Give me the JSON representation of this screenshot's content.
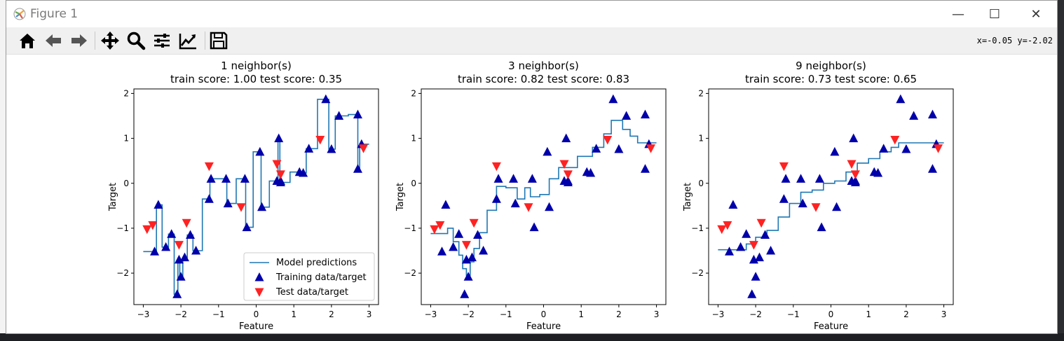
{
  "window": {
    "title": "Figure 1",
    "minimize": "—",
    "maximize": "☐",
    "close": "✕"
  },
  "toolbar": {
    "tools": [
      "home-icon",
      "back-icon",
      "forward-icon",
      "pan-icon",
      "zoom-icon",
      "configure-subplots-icon",
      "edit-axis-icon",
      "save-icon"
    ],
    "coords": "x=-0.05 y=-2.02"
  },
  "colors": {
    "line": "#1f77b4",
    "train": "#0000aa",
    "test": "#ff2222"
  },
  "train": {
    "x": [
      -2.7,
      -2.6,
      -2.4,
      -2.25,
      -2.1,
      -2.05,
      -2.0,
      -1.9,
      -1.75,
      -1.6,
      -1.25,
      -1.2,
      -0.8,
      -0.75,
      -0.3,
      -0.25,
      0.1,
      0.15,
      0.55,
      0.6,
      0.65,
      0.65,
      1.15,
      1.25,
      1.4,
      1.85,
      2.0,
      2.2,
      2.7,
      2.7,
      2.8
    ],
    "y": [
      -1.52,
      -0.48,
      -1.42,
      -1.13,
      -2.47,
      -1.7,
      -2.08,
      -1.65,
      -1.15,
      -1.5,
      -0.35,
      0.1,
      0.1,
      -0.45,
      0.1,
      -0.98,
      0.7,
      -0.53,
      0.05,
      1.0,
      0.02,
      0.05,
      0.25,
      0.23,
      0.77,
      1.87,
      0.76,
      1.5,
      1.53,
      0.32,
      0.87
    ]
  },
  "test": {
    "x": [
      -2.9,
      -2.75,
      -2.05,
      -1.85,
      -1.25,
      -0.4,
      0.55,
      0.65,
      1.7,
      2.85
    ],
    "y": [
      -1.02,
      -0.93,
      -1.37,
      -0.88,
      0.38,
      -0.53,
      0.43,
      0.2,
      0.97,
      0.78
    ]
  },
  "chart_data": [
    {
      "type": "line",
      "title": "1 neighbor(s)",
      "subtitle": "train score: 1.00 test score: 0.35",
      "xlabel": "Feature",
      "ylabel": "Target",
      "xlim": [
        -3.25,
        3.25
      ],
      "ylim": [
        -2.7,
        2.1
      ],
      "xticks": [
        -3,
        -2,
        -1,
        0,
        1,
        2,
        3
      ],
      "yticks": [
        -2,
        -1,
        0,
        1,
        2
      ],
      "legend": {
        "position": "lower-right",
        "entries": [
          "Model predictions",
          "Training data/target",
          "Test data/target"
        ]
      },
      "series": [
        {
          "name": "Model predictions",
          "x": [
            -3.0,
            -2.65,
            -2.65,
            -2.5,
            -2.5,
            -2.33,
            -2.33,
            -2.18,
            -2.18,
            -2.08,
            -2.08,
            -2.03,
            -2.03,
            -1.95,
            -1.95,
            -1.83,
            -1.83,
            -1.68,
            -1.68,
            -1.43,
            -1.43,
            -1.23,
            -1.23,
            -1.0,
            -1.0,
            -0.78,
            -0.78,
            -0.53,
            -0.53,
            -0.28,
            -0.28,
            -0.08,
            -0.08,
            0.13,
            0.13,
            0.35,
            0.35,
            0.58,
            0.58,
            0.63,
            0.63,
            0.9,
            0.9,
            1.2,
            1.2,
            1.33,
            1.33,
            1.63,
            1.63,
            1.93,
            1.93,
            2.1,
            2.1,
            2.45,
            2.45,
            2.7,
            2.7,
            2.75,
            2.75,
            3.0
          ],
          "y": [
            -1.52,
            -1.52,
            -0.48,
            -0.48,
            -1.42,
            -1.42,
            -1.13,
            -1.13,
            -2.47,
            -2.47,
            -1.7,
            -1.7,
            -2.08,
            -2.08,
            -1.65,
            -1.65,
            -1.15,
            -1.15,
            -1.5,
            -1.5,
            -0.35,
            -0.35,
            0.1,
            0.1,
            0.1,
            0.1,
            -0.45,
            -0.45,
            0.1,
            0.1,
            -0.98,
            -0.98,
            0.7,
            0.7,
            -0.53,
            -0.53,
            0.05,
            0.05,
            1.0,
            1.0,
            0.02,
            0.02,
            0.25,
            0.25,
            0.23,
            0.23,
            0.77,
            0.77,
            1.87,
            1.87,
            0.76,
            0.76,
            1.5,
            1.5,
            1.53,
            1.53,
            0.32,
            0.32,
            0.87,
            0.87
          ]
        }
      ]
    },
    {
      "type": "line",
      "title": "3 neighbor(s)",
      "subtitle": "train score: 0.82 test score: 0.83",
      "xlabel": "Feature",
      "ylabel": "Target",
      "xlim": [
        -3.25,
        3.25
      ],
      "ylim": [
        -2.7,
        2.1
      ],
      "xticks": [
        -3,
        -2,
        -1,
        0,
        1,
        2,
        3
      ],
      "yticks": [
        -2,
        -1,
        0,
        1,
        2
      ],
      "series": [
        {
          "name": "Model predictions",
          "x": [
            -3.0,
            -2.55,
            -2.55,
            -2.4,
            -2.4,
            -2.25,
            -2.25,
            -2.15,
            -2.15,
            -2.05,
            -2.05,
            -1.95,
            -1.95,
            -1.85,
            -1.85,
            -1.7,
            -1.7,
            -1.5,
            -1.5,
            -1.25,
            -1.25,
            -1.0,
            -1.0,
            -0.7,
            -0.7,
            -0.5,
            -0.5,
            -0.35,
            -0.35,
            -0.1,
            -0.1,
            0.15,
            0.15,
            0.4,
            0.4,
            0.65,
            0.65,
            0.9,
            0.9,
            1.3,
            1.3,
            1.6,
            1.6,
            1.8,
            1.8,
            2.1,
            2.1,
            2.3,
            2.3,
            2.5,
            2.5,
            3.0
          ],
          "y": [
            -1.12,
            -1.12,
            -1.0,
            -1.0,
            -1.3,
            -1.3,
            -1.6,
            -1.6,
            -1.9,
            -1.9,
            -2.05,
            -2.05,
            -1.75,
            -1.75,
            -1.45,
            -1.45,
            -1.1,
            -1.1,
            -0.6,
            -0.6,
            -0.07,
            -0.07,
            -0.1,
            -0.1,
            -0.35,
            -0.35,
            -0.1,
            -0.1,
            -0.3,
            -0.3,
            -0.25,
            -0.25,
            0.1,
            0.1,
            0.35,
            0.35,
            0.35,
            0.35,
            0.6,
            0.6,
            0.8,
            0.8,
            1.1,
            1.1,
            1.4,
            1.4,
            1.2,
            1.2,
            1.05,
            1.05,
            0.9,
            0.9
          ]
        }
      ]
    },
    {
      "type": "line",
      "title": "9 neighbor(s)",
      "subtitle": "train score: 0.73 test score: 0.65",
      "xlabel": "Feature",
      "ylabel": "Target",
      "xlim": [
        -3.25,
        3.25
      ],
      "ylim": [
        -2.7,
        2.1
      ],
      "xticks": [
        -3,
        -2,
        -1,
        0,
        1,
        2,
        3
      ],
      "yticks": [
        -2,
        -1,
        0,
        1,
        2
      ],
      "series": [
        {
          "name": "Model predictions",
          "x": [
            -3.0,
            -2.25,
            -2.25,
            -2.0,
            -2.0,
            -1.7,
            -1.7,
            -1.4,
            -1.4,
            -1.1,
            -1.1,
            -0.8,
            -0.8,
            -0.5,
            -0.5,
            -0.2,
            -0.2,
            0.1,
            0.1,
            0.4,
            0.4,
            0.7,
            0.7,
            1.0,
            1.0,
            1.3,
            1.3,
            1.6,
            1.6,
            1.8,
            1.8,
            3.0
          ],
          "y": [
            -1.48,
            -1.48,
            -1.35,
            -1.35,
            -1.2,
            -1.2,
            -1.05,
            -1.05,
            -0.75,
            -0.75,
            -0.45,
            -0.45,
            -0.2,
            -0.2,
            -0.15,
            -0.15,
            0.0,
            0.0,
            0.05,
            0.05,
            0.25,
            0.25,
            0.45,
            0.45,
            0.55,
            0.55,
            0.7,
            0.7,
            0.8,
            0.8,
            0.9,
            0.9
          ]
        }
      ]
    }
  ]
}
